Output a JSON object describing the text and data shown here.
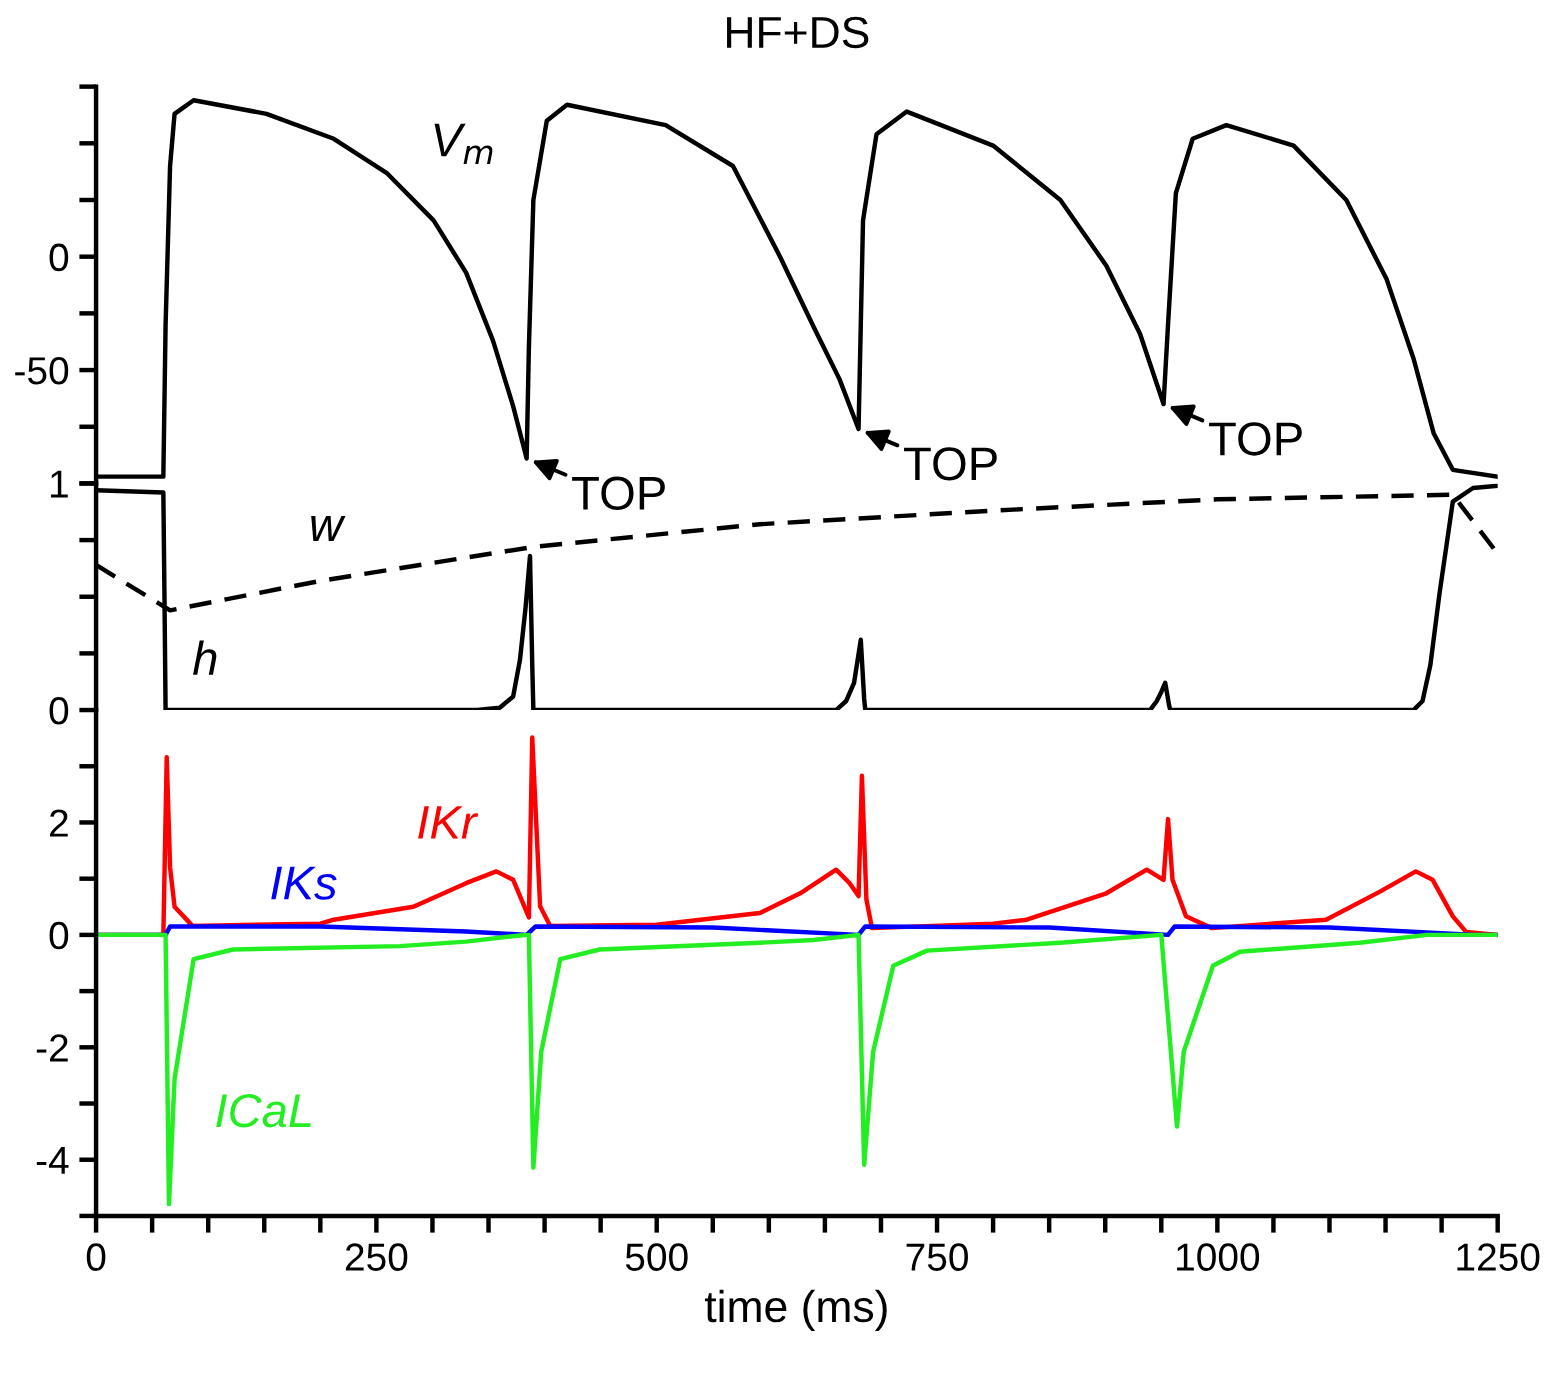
{
  "chart_data": [
    {
      "type": "line",
      "title": "HF+DS",
      "xlim": [
        0,
        1250
      ],
      "ylim": [
        -100,
        75
      ],
      "tick_labels": "y",
      "yticks": [
        {
          "value": -100,
          "label": null
        },
        {
          "value": -75,
          "label": null
        },
        -50,
        {
          "value": -25,
          "label": null
        },
        0,
        {
          "value": 25,
          "label": null
        },
        {
          "value": 50,
          "label": null
        },
        {
          "value": 75,
          "label": null
        }
      ],
      "series": [
        {
          "name": "V$_{m}$",
          "color": "#000000",
          "line_style": "solid",
          "x": [
            0,
            60,
            62,
            66,
            70,
            87,
            152,
            212,
            259,
            301,
            330,
            354,
            372,
            384,
            386,
            390,
            402,
            420,
            508,
            568,
            610,
            640,
            663,
            680,
            682,
            684,
            696,
            723,
            800,
            860,
            901,
            931,
            952,
            956,
            963,
            978,
            1008,
            1068,
            1115,
            1151,
            1175,
            1193,
            1210,
            1250
          ],
          "values": [
            -97,
            -97,
            -30,
            40,
            63,
            69,
            63,
            52,
            37,
            16,
            -7,
            -37,
            -66,
            -89,
            -40,
            25,
            60,
            67,
            58,
            40,
            0,
            -31,
            -54,
            -76,
            -30,
            16,
            54,
            64,
            49,
            25,
            -4,
            -34,
            -65,
            -30,
            28,
            52,
            58,
            49,
            25,
            -10,
            -45,
            -78,
            -94,
            -97
          ]
        }
      ],
      "annotations": [
        {
          "text": "TOP",
          "x": 384,
          "y": -89
        },
        {
          "text": "TOP",
          "x": 680,
          "y": -76
        },
        {
          "text": "TOP",
          "x": 952,
          "y": -65
        }
      ]
    },
    {
      "type": "line",
      "xlim": [
        0,
        1250
      ],
      "ylim": [
        0,
        1
      ],
      "tick_labels": "y",
      "yticks": [
        0,
        {
          "value": 0.25,
          "label": null
        },
        {
          "value": 0.5,
          "label": null
        },
        {
          "value": 0.75,
          "label": null
        },
        1
      ],
      "series": [
        {
          "name": "h",
          "color": "#000000",
          "line_style": "solid",
          "x": [
            0,
            60,
            61,
            62,
            340,
            360,
            372,
            378,
            383,
            387,
            389,
            390,
            660,
            669,
            676,
            682,
            685,
            686,
            940,
            946,
            950,
            953.5,
            957,
            958,
            1175,
            1183,
            1190,
            1198,
            1210,
            1228,
            1250
          ],
          "values": [
            0.97,
            0.96,
            0.5,
            0,
            0,
            0.01,
            0.06,
            0.22,
            0.45,
            0.68,
            0.2,
            0,
            0,
            0.04,
            0.12,
            0.31,
            0.05,
            0,
            0,
            0.04,
            0.08,
            0.12,
            0.02,
            0,
            0,
            0.04,
            0.2,
            0.51,
            0.92,
            0.98,
            0.99
          ]
        },
        {
          "name": "w",
          "color": "#000000",
          "line_style": "dashed",
          "x": [
            0,
            66,
            200,
            390,
            592,
            800,
            1000,
            1210,
            1250
          ],
          "values": [
            0.64,
            0.44,
            0.57,
            0.72,
            0.82,
            0.88,
            0.93,
            0.95,
            0.69
          ]
        }
      ]
    },
    {
      "type": "line",
      "xlim": [
        0,
        1250
      ],
      "ylim": [
        -5,
        4
      ],
      "xlabel": "time (ms)",
      "xticks": [
        0,
        {
          "value": 50,
          "label": null
        },
        {
          "value": 100,
          "label": null
        },
        {
          "value": 150,
          "label": null
        },
        {
          "value": 200,
          "label": null
        },
        250,
        {
          "value": 300,
          "label": null
        },
        {
          "value": 350,
          "label": null
        },
        {
          "value": 400,
          "label": null
        },
        {
          "value": 450,
          "label": null
        },
        500,
        {
          "value": 550,
          "label": null
        },
        {
          "value": 600,
          "label": null
        },
        {
          "value": 650,
          "label": null
        },
        {
          "value": 700,
          "label": null
        },
        750,
        {
          "value": 800,
          "label": null
        },
        {
          "value": 850,
          "label": null
        },
        {
          "value": 900,
          "label": null
        },
        {
          "value": 950,
          "label": null
        },
        1000,
        {
          "value": 1050,
          "label": null
        },
        {
          "value": 1100,
          "label": null
        },
        {
          "value": 1150,
          "label": null
        },
        {
          "value": 1200,
          "label": null
        },
        1250
      ],
      "yticks": [
        {
          "value": -5,
          "label": null
        },
        -4,
        {
          "value": -3,
          "label": null
        },
        -2,
        {
          "value": -1,
          "label": null
        },
        0,
        {
          "value": 1,
          "label": null
        },
        2,
        {
          "value": 3,
          "label": null
        }
      ],
      "series": [
        {
          "name": "IKr",
          "color": "#ff0000",
          "line_style": "solid",
          "x": [
            0,
            60,
            63,
            66,
            70,
            86,
            200,
            212,
            283,
            330,
            357,
            372,
            386,
            389,
            396,
            405,
            500,
            592,
            628,
            660,
            672,
            680,
            683,
            687,
            692,
            800,
            830,
            901,
            937,
            952,
            956,
            960,
            972,
            995,
            1097,
            1145,
            1177,
            1192,
            1210,
            1222,
            1250
          ],
          "values": [
            0,
            0,
            3.16,
            1.2,
            0.5,
            0.16,
            0.2,
            0.27,
            0.5,
            0.92,
            1.13,
            0.98,
            0.31,
            3.51,
            0.51,
            0.16,
            0.18,
            0.39,
            0.74,
            1.16,
            0.92,
            0.69,
            2.83,
            0.63,
            0.12,
            0.2,
            0.27,
            0.74,
            1.16,
            0.98,
            2.06,
            0.98,
            0.33,
            0.12,
            0.27,
            0.77,
            1.13,
            0.98,
            0.33,
            0.05,
            0
          ]
        },
        {
          "name": "IKs",
          "color": "#0000ff",
          "line_style": "solid",
          "x": [
            0,
            62,
            66,
            200,
            330,
            384,
            392,
            550,
            680,
            686,
            850,
            956,
            962,
            1100,
            1230,
            1250
          ],
          "values": [
            0,
            0,
            0.15,
            0.15,
            0.06,
            0,
            0.15,
            0.13,
            0,
            0.15,
            0.13,
            0,
            0.15,
            0.13,
            0,
            0
          ]
        },
        {
          "name": "ICaL",
          "color": "#22ee22",
          "line_style": "solid",
          "x": [
            0,
            62,
            65,
            70,
            87,
            122,
            271,
            330,
            378,
            386,
            390,
            397,
            414,
            449,
            592,
            640,
            680,
            685,
            693,
            711,
            741,
            860,
            950,
            964,
            970,
            996,
            1020,
            1127,
            1187,
            1250
          ],
          "values": [
            0,
            0,
            -4.79,
            -2.56,
            -0.43,
            -0.26,
            -0.2,
            -0.12,
            -0.01,
            0,
            -4.14,
            -2.08,
            -0.43,
            -0.26,
            -0.14,
            -0.09,
            0,
            -4.09,
            -2.08,
            -0.55,
            -0.28,
            -0.14,
            0,
            -3.41,
            -2.08,
            -0.55,
            -0.3,
            -0.14,
            0,
            0
          ]
        }
      ]
    }
  ]
}
